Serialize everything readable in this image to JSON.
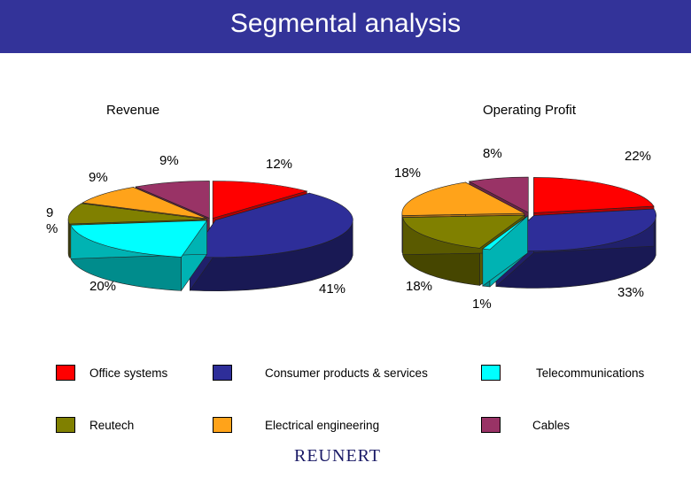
{
  "header": {
    "title": "Segmental analysis"
  },
  "colors": {
    "office_systems": "#ff0000",
    "consumer_products": "#2e2e99",
    "telecommunications": "#00ffff",
    "reutech": "#808000",
    "electrical_engineering": "#ffa31a",
    "cables": "#993366",
    "header_bg": "#333399"
  },
  "legend": {
    "items": [
      {
        "label": "Office systems",
        "color": "#ff0000"
      },
      {
        "label": "Consumer products & services",
        "color": "#2e2e99"
      },
      {
        "label": "Telecommunications",
        "color": "#00ffff"
      },
      {
        "label": "Reutech",
        "color": "#808000"
      },
      {
        "label": "Electrical engineering",
        "color": "#ffa31a"
      },
      {
        "label": "Cables",
        "color": "#993366"
      }
    ]
  },
  "logo": {
    "text": "REUNERT"
  },
  "chart_data": [
    {
      "type": "pie",
      "title": "Revenue",
      "categories": [
        "Office systems",
        "Consumer products & services",
        "Telecommunications",
        "Reutech",
        "Electrical engineering",
        "Cables"
      ],
      "values": [
        12,
        41,
        20,
        9,
        9,
        9
      ],
      "labels": {
        "office": "12%",
        "consumer": "41%",
        "telecom": "20%",
        "reutech": "9\n%",
        "electrical": "9%",
        "cables": "9%"
      }
    },
    {
      "type": "pie",
      "title": "Operating Profit",
      "categories": [
        "Office systems",
        "Consumer products & services",
        "Telecommunications",
        "Reutech",
        "Electrical engineering",
        "Cables"
      ],
      "values": [
        22,
        33,
        1,
        18,
        18,
        8
      ],
      "labels": {
        "office": "22%",
        "consumer": "33%",
        "telecom": "1%",
        "reutech": "18%",
        "electrical": "18%",
        "cables": "8%"
      }
    }
  ]
}
